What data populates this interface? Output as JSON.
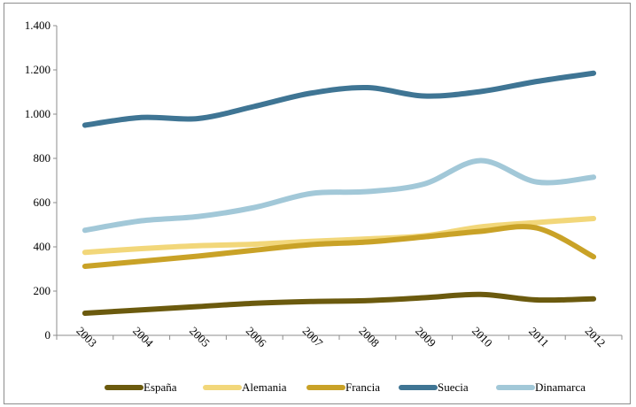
{
  "chart_data": {
    "type": "line",
    "title": "",
    "xlabel": "",
    "ylabel": "",
    "categories": [
      "2003",
      "2004",
      "2005",
      "2006",
      "2007",
      "2008",
      "2009",
      "2010",
      "2011",
      "2012"
    ],
    "ylim": [
      0,
      1400
    ],
    "yticks": [
      {
        "value": 0,
        "label": "0"
      },
      {
        "value": 200,
        "label": "200"
      },
      {
        "value": 400,
        "label": "400"
      },
      {
        "value": 600,
        "label": "600"
      },
      {
        "value": 800,
        "label": "800"
      },
      {
        "value": 1000,
        "label": "1.000"
      },
      {
        "value": 1200,
        "label": "1.200"
      },
      {
        "value": 1400,
        "label": "1.400"
      }
    ],
    "grid": false,
    "legend_position": "bottom",
    "series": [
      {
        "name": "España",
        "color": "#6b5a0e",
        "values": [
          100,
          115,
          130,
          145,
          153,
          157,
          170,
          185,
          160,
          165
        ]
      },
      {
        "name": "Alemania",
        "color": "#f2d77a",
        "values": [
          375,
          392,
          405,
          412,
          425,
          436,
          450,
          490,
          510,
          528
        ]
      },
      {
        "name": "Francia",
        "color": "#c9a227",
        "values": [
          312,
          335,
          358,
          385,
          410,
          422,
          445,
          470,
          485,
          355
        ]
      },
      {
        "name": "Suecia",
        "color": "#3f7594",
        "values": [
          950,
          985,
          980,
          1035,
          1095,
          1120,
          1082,
          1102,
          1148,
          1185
        ]
      },
      {
        "name": "Dinamarca",
        "color": "#a2c8d8",
        "values": [
          475,
          518,
          537,
          578,
          641,
          650,
          684,
          790,
          693,
          715
        ]
      }
    ]
  }
}
